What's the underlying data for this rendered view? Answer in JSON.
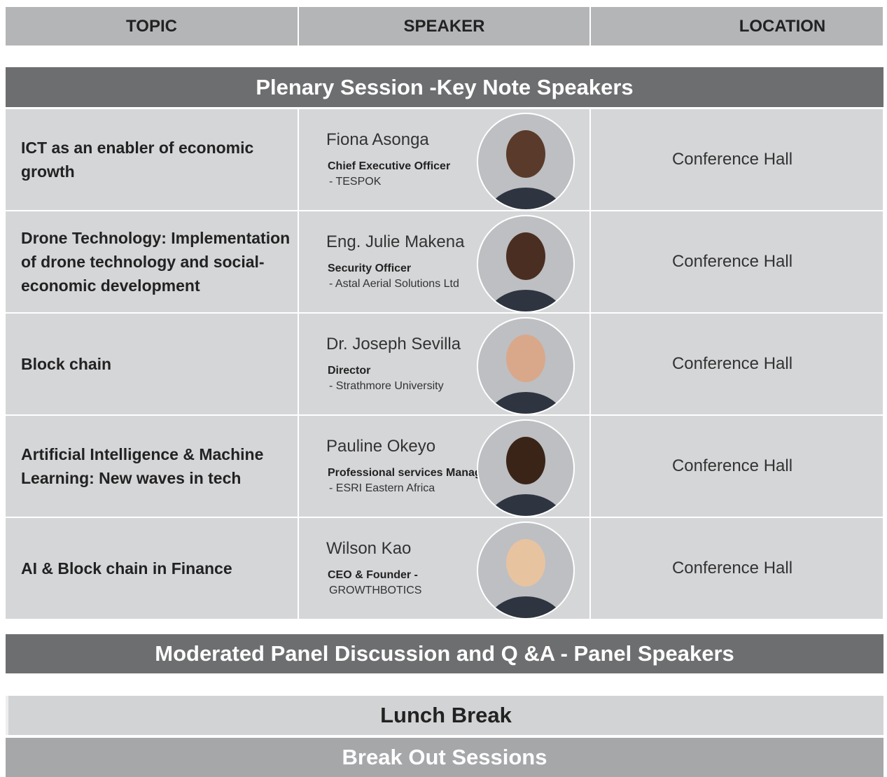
{
  "header": {
    "columns": [
      "TOPIC",
      "SPEAKER",
      "LOCATION"
    ]
  },
  "plenary": {
    "title": "Plenary Session -Key Note Speakers",
    "rows": [
      {
        "topic": "ICT as an enabler of economic growth",
        "name": "Fiona Asonga",
        "role": "Chief Executive Officer",
        "org": "- TESPOK",
        "location": "Conference Hall"
      },
      {
        "topic": "Drone Technology: Implementation of drone technology and social-economic development",
        "name": "Eng. Julie Makena",
        "role": "Security Officer",
        "org": "- Astal Aerial Solutions Ltd",
        "location": "Conference Hall"
      },
      {
        "topic": "Block chain",
        "name": "Dr. Joseph Sevilla",
        "role": "Director",
        "org": "- Strathmore University",
        "location": "Conference Hall"
      },
      {
        "topic": "Artificial Intelligence & Machine Learning: New waves in tech",
        "name": "Pauline Okeyo",
        "role": "Professional services Manager",
        "org": "- ESRI Eastern Africa",
        "location": "Conference Hall"
      },
      {
        "topic": "AI & Block chain in Finance",
        "name": "Wilson Kao",
        "role": "CEO & Founder -",
        "org": "GROWTHBOTICS",
        "location": "Conference Hall"
      }
    ]
  },
  "panel": {
    "title": "Moderated Panel Discussion and Q &A  - Panel Speakers"
  },
  "lunch": {
    "title": "Lunch Break"
  },
  "breakout": {
    "title": "Break Out Sessions"
  }
}
